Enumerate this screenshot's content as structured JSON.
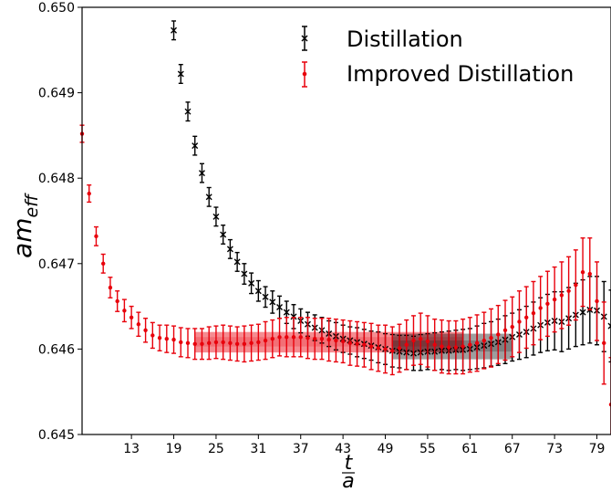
{
  "chart_data": {
    "type": "scatter",
    "title": "",
    "xlabel_num": "t",
    "xlabel_den": "a",
    "ylabel_main": "am",
    "ylabel_sub": "eff",
    "xlim": [
      6,
      81
    ],
    "ylim": [
      0.645,
      0.65
    ],
    "xticks": [
      13,
      19,
      25,
      31,
      37,
      43,
      49,
      55,
      61,
      67,
      73,
      79
    ],
    "yticks": [
      "0.645",
      "0.646",
      "0.647",
      "0.648",
      "0.649",
      "0.650"
    ],
    "ytick_values": [
      0.645,
      0.646,
      0.647,
      0.648,
      0.649,
      0.65
    ],
    "legend_position": "top-right",
    "series": [
      {
        "name": "Distillation",
        "marker": "x",
        "color": "#000000",
        "x": [
          19,
          20,
          21,
          22,
          23,
          24,
          25,
          26,
          27,
          28,
          29,
          30,
          31,
          32,
          33,
          34,
          35,
          36,
          37,
          38,
          39,
          40,
          41,
          42,
          43,
          44,
          45,
          46,
          47,
          48,
          49,
          50,
          51,
          52,
          53,
          54,
          55,
          56,
          57,
          58,
          59,
          60,
          61,
          62,
          63,
          64,
          65,
          66,
          67,
          68,
          69,
          70,
          71,
          72,
          73,
          74,
          75,
          76,
          77,
          78,
          79,
          80,
          81
        ],
        "y": [
          0.64973,
          0.64922,
          0.64878,
          0.64838,
          0.64806,
          0.64778,
          0.64755,
          0.64734,
          0.64717,
          0.64702,
          0.64688,
          0.64677,
          0.64668,
          0.64661,
          0.64655,
          0.64649,
          0.64643,
          0.64638,
          0.64633,
          0.64629,
          0.64625,
          0.64622,
          0.64618,
          0.64615,
          0.64612,
          0.6461,
          0.64608,
          0.64606,
          0.64604,
          0.64602,
          0.646,
          0.64598,
          0.64597,
          0.64596,
          0.64595,
          0.64596,
          0.64597,
          0.64597,
          0.64598,
          0.64598,
          0.64599,
          0.64599,
          0.646,
          0.64602,
          0.64604,
          0.64606,
          0.64608,
          0.64611,
          0.64614,
          0.64617,
          0.6462,
          0.64624,
          0.64628,
          0.64631,
          0.64633,
          0.64632,
          0.64636,
          0.6464,
          0.64643,
          0.64646,
          0.64645,
          0.64638,
          0.64627
        ],
        "err": [
          0.00011,
          0.00011,
          0.00011,
          0.00011,
          0.00011,
          0.00011,
          0.00011,
          0.00011,
          0.00011,
          0.00011,
          0.00012,
          0.00012,
          0.00012,
          0.00012,
          0.00013,
          0.00013,
          0.00013,
          0.00014,
          0.00014,
          0.00014,
          0.00015,
          0.00015,
          0.00015,
          0.00016,
          0.00016,
          0.00016,
          0.00017,
          0.00017,
          0.00017,
          0.00018,
          0.00018,
          0.00019,
          0.00019,
          0.0002,
          0.0002,
          0.00021,
          0.00021,
          0.00022,
          0.00022,
          0.00023,
          0.00023,
          0.00024,
          0.00024,
          0.00025,
          0.00026,
          0.00026,
          0.00027,
          0.00028,
          0.00028,
          0.00029,
          0.0003,
          0.00031,
          0.00032,
          0.00033,
          0.00034,
          0.00035,
          0.00036,
          0.00037,
          0.00038,
          0.00039,
          0.0004,
          0.00041,
          0.00042
        ]
      },
      {
        "name": "Improved Distillation",
        "marker": "dot",
        "color": "#e8000b",
        "x": [
          6,
          7,
          8,
          9,
          10,
          11,
          12,
          13,
          14,
          15,
          16,
          17,
          18,
          19,
          20,
          21,
          22,
          23,
          24,
          25,
          26,
          27,
          28,
          29,
          30,
          31,
          32,
          33,
          34,
          35,
          36,
          37,
          38,
          39,
          40,
          41,
          42,
          43,
          44,
          45,
          46,
          47,
          48,
          49,
          50,
          51,
          52,
          53,
          54,
          55,
          56,
          57,
          58,
          59,
          60,
          61,
          62,
          63,
          64,
          65,
          66,
          67,
          68,
          69,
          70,
          71,
          72,
          73,
          74,
          75,
          76,
          77,
          78,
          79,
          80,
          81
        ],
        "y": [
          0.64852,
          0.64782,
          0.64732,
          0.647,
          0.64672,
          0.64656,
          0.64645,
          0.64637,
          0.64629,
          0.64622,
          0.64616,
          0.64613,
          0.64612,
          0.64611,
          0.64608,
          0.64607,
          0.64606,
          0.64606,
          0.64607,
          0.64608,
          0.64608,
          0.64607,
          0.64606,
          0.64606,
          0.64607,
          0.64608,
          0.6461,
          0.64612,
          0.64614,
          0.64614,
          0.64614,
          0.64614,
          0.64613,
          0.64612,
          0.64612,
          0.64611,
          0.6461,
          0.64609,
          0.64607,
          0.64606,
          0.64605,
          0.64603,
          0.64601,
          0.646,
          0.64598,
          0.64601,
          0.64605,
          0.6461,
          0.64612,
          0.64609,
          0.64605,
          0.64603,
          0.64602,
          0.64602,
          0.64603,
          0.64605,
          0.64607,
          0.6461,
          0.64613,
          0.64617,
          0.64622,
          0.64626,
          0.64632,
          0.64637,
          0.64642,
          0.64648,
          0.64653,
          0.64658,
          0.64663,
          0.64668,
          0.64675,
          0.6469,
          0.64688,
          0.64656,
          0.64607,
          0.64535
        ],
        "err": [
          0.0001,
          0.0001,
          0.00011,
          0.00011,
          0.00012,
          0.00012,
          0.00013,
          0.00013,
          0.00014,
          0.00014,
          0.00015,
          0.00015,
          0.00016,
          0.00016,
          0.00017,
          0.00017,
          0.00018,
          0.00018,
          0.00019,
          0.00019,
          0.0002,
          0.0002,
          0.0002,
          0.00021,
          0.00021,
          0.00021,
          0.00022,
          0.00022,
          0.00022,
          0.00023,
          0.00023,
          0.00023,
          0.00024,
          0.00024,
          0.00024,
          0.00025,
          0.00025,
          0.00025,
          0.00026,
          0.00026,
          0.00026,
          0.00027,
          0.00027,
          0.00028,
          0.00028,
          0.00028,
          0.00029,
          0.00029,
          0.0003,
          0.0003,
          0.0003,
          0.00031,
          0.00031,
          0.00031,
          0.00032,
          0.00032,
          0.00033,
          0.00033,
          0.00034,
          0.00034,
          0.00035,
          0.00035,
          0.00036,
          0.00036,
          0.00037,
          0.00037,
          0.00038,
          0.00038,
          0.00039,
          0.0004,
          0.00041,
          0.0004,
          0.00042,
          0.00046,
          0.00048,
          0.00055
        ]
      }
    ],
    "bands": [
      {
        "series": "Improved Distillation",
        "color": "#e8000b",
        "x": [
          22,
          60
        ],
        "y": [
          0.64596,
          0.6462
        ],
        "y_inner": [
          0.64603,
          0.64614
        ]
      },
      {
        "series": "Distillation",
        "color": "#000000",
        "x": [
          50,
          67
        ],
        "y": [
          0.64588,
          0.64618
        ],
        "y_inner": [
          0.64597,
          0.6461
        ]
      }
    ]
  }
}
